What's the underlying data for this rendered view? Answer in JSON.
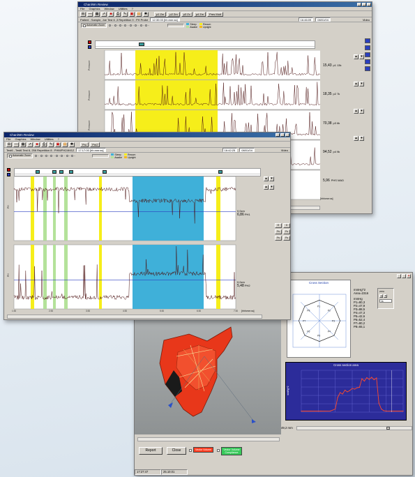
{
  "colors": {
    "highlight_yellow": "#f6ee1a",
    "highlight_blue": "#3fb0d9",
    "highlight_green": "#b4e29a",
    "trace": "#4a1010",
    "cross_section_bg": "#2c2c9a",
    "cross_section_line": "#ff4a2a",
    "model": "#e8371a",
    "vector_volume": "#ff3b1f",
    "vector_volume_compliance": "#38c95a"
  },
  "win1": {
    "title": "Chan/Wn Review",
    "menu": [
      "File",
      "Graphics",
      "Window",
      "Utilities",
      "?"
    ],
    "tabs": [
      "p1 Zm",
      "p2 Zm",
      "p3 Zc",
      "p4 Zm",
      "Pres Mult"
    ],
    "patient": "Patient : Sample, Joe Test 6 ,3 Repetition 9 : PH Probe",
    "fields": [
      "12:30:03 [hh:mm:ss]",
      "16:46:09",
      "08/01/04"
    ],
    "right_label": "Video",
    "auto_zoom": "Automatic Zoom",
    "legend": [
      "Sleep",
      "Awake",
      "Recum",
      "Upright"
    ],
    "channel_label": "Pressure",
    "values": [
      {
        "value": "15,43",
        "unit": "p1 13k"
      },
      {
        "value": "18,35",
        "unit": "p2 7k"
      },
      {
        "value": "70,38",
        "unit": "p3 6k"
      },
      {
        "value": "94,52",
        "unit": "p4 9k"
      },
      {
        "value": "5,96",
        "unit": "PHS MAD"
      }
    ],
    "time_axis": "[hhh:mm:ss]"
  },
  "win2": {
    "title": "Chan/Wn Review",
    "menu": [
      "File",
      "Graphics",
      "Window",
      "Utilities",
      "?"
    ],
    "patient": "Test6 , Test6 Test 6, 256 Repetition 8 : PHM/PH24H/12",
    "fields": [
      "17:17:00 [hh:mm:ss]",
      "16:42:25",
      "08/01/04"
    ],
    "right_label": "Video",
    "tabs": [
      "Pru",
      "Pm2"
    ],
    "auto_zoom": "Automatic Zoom",
    "legend": [
      "Sleep",
      "Awake",
      "Recum",
      "Upright"
    ],
    "channel_label": "PH",
    "plots": [
      {
        "distance": "0,0cm",
        "value": "6,86",
        "label": "PH1"
      },
      {
        "distance": "0,0cm",
        "value": "5,48",
        "label": "PH2"
      }
    ],
    "x_ticks": [
      "1:30",
      "2:30",
      "3:30",
      "4:30",
      "5:30",
      "6:30",
      "7:30"
    ],
    "time_axis": "[hhh:mm:ss]",
    "side_buttons": [
      "E",
      "X",
      "Fs",
      "Fs",
      "Fs",
      "Fs"
    ]
  },
  "win3": {
    "cross_section_title": "Cross Section",
    "units": "mmHg^2",
    "area": "Area=2316",
    "mmhg": "mmHg",
    "pvals": [
      "P1=80,3",
      "P2=47,9",
      "P3=88,5",
      "P4=47,3",
      "P5=42,6",
      "P6=52,4",
      "P7=80,2",
      "P8=65,1"
    ],
    "radar_labels": [
      "P1",
      "P2",
      "P3",
      "P4",
      "P5",
      "P6",
      "P7",
      "P8"
    ],
    "zero_label": "zero",
    "zero_value": "1s",
    "chart_title": "Cross section area",
    "yaxis": "mmHg^2",
    "mm_value": "49,2 mm",
    "report": "Report",
    "close": "Close",
    "vector_volume": "Vector Volume",
    "vector_volume_compliance": "Vector Volume Compliance",
    "status": [
      "17:27:47",
      "25.10.01"
    ]
  },
  "chart_data": {
    "type": "line",
    "title": "Cross section area",
    "ylabel": "mmHg^2",
    "xlabel": "",
    "x": [
      0,
      8,
      16,
      24,
      28,
      30,
      32,
      34,
      36,
      38,
      40,
      42,
      44,
      46,
      48,
      50,
      52,
      54,
      56,
      58,
      60,
      62,
      64,
      66,
      68,
      70,
      76,
      84
    ],
    "values": [
      300,
      300,
      310,
      320,
      900,
      4200,
      5600,
      5200,
      6300,
      5800,
      6200,
      6800,
      6600,
      7000,
      7100,
      9600,
      8900,
      9900,
      9400,
      10000,
      9300,
      9800,
      2600,
      900,
      400,
      320,
      300,
      300
    ]
  }
}
